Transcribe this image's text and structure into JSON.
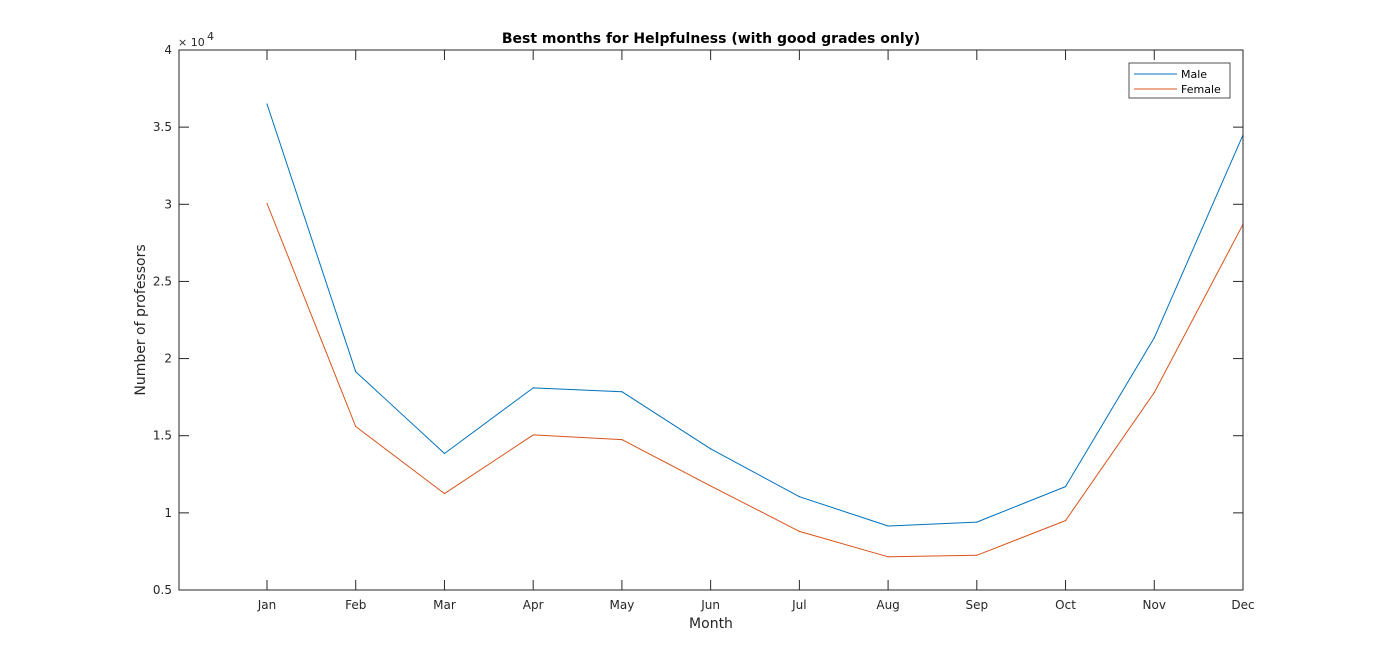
{
  "chart_data": {
    "type": "line",
    "title": "Best months for Helpfulness (with good grades only)",
    "xlabel": "Month",
    "ylabel": "Number of professors",
    "categories": [
      "Jan",
      "Feb",
      "Mar",
      "Apr",
      "May",
      "Jun",
      "Jul",
      "Aug",
      "Sep",
      "Oct",
      "Nov",
      "Dec"
    ],
    "series": [
      {
        "name": "Male",
        "color": "#0072BD",
        "values": [
          36500,
          19150,
          13850,
          18100,
          17850,
          14150,
          11050,
          9150,
          9400,
          11700,
          21350,
          34500
        ]
      },
      {
        "name": "Female",
        "color": "#D95319",
        "values": [
          30050,
          15600,
          11250,
          15050,
          14750,
          11750,
          8800,
          7150,
          7250,
          9500,
          17800,
          28700
        ]
      }
    ],
    "ylim": [
      5000,
      40000
    ],
    "yticks": [
      5000,
      10000,
      15000,
      20000,
      25000,
      30000,
      35000,
      40000
    ],
    "ytick_labels": [
      "0.5",
      "1",
      "1.5",
      "2",
      "2.5",
      "3",
      "3.5",
      "4"
    ],
    "y_exponent_base": "× 10",
    "y_exponent_power": "4",
    "legend_position": "top-right",
    "grid": false
  }
}
